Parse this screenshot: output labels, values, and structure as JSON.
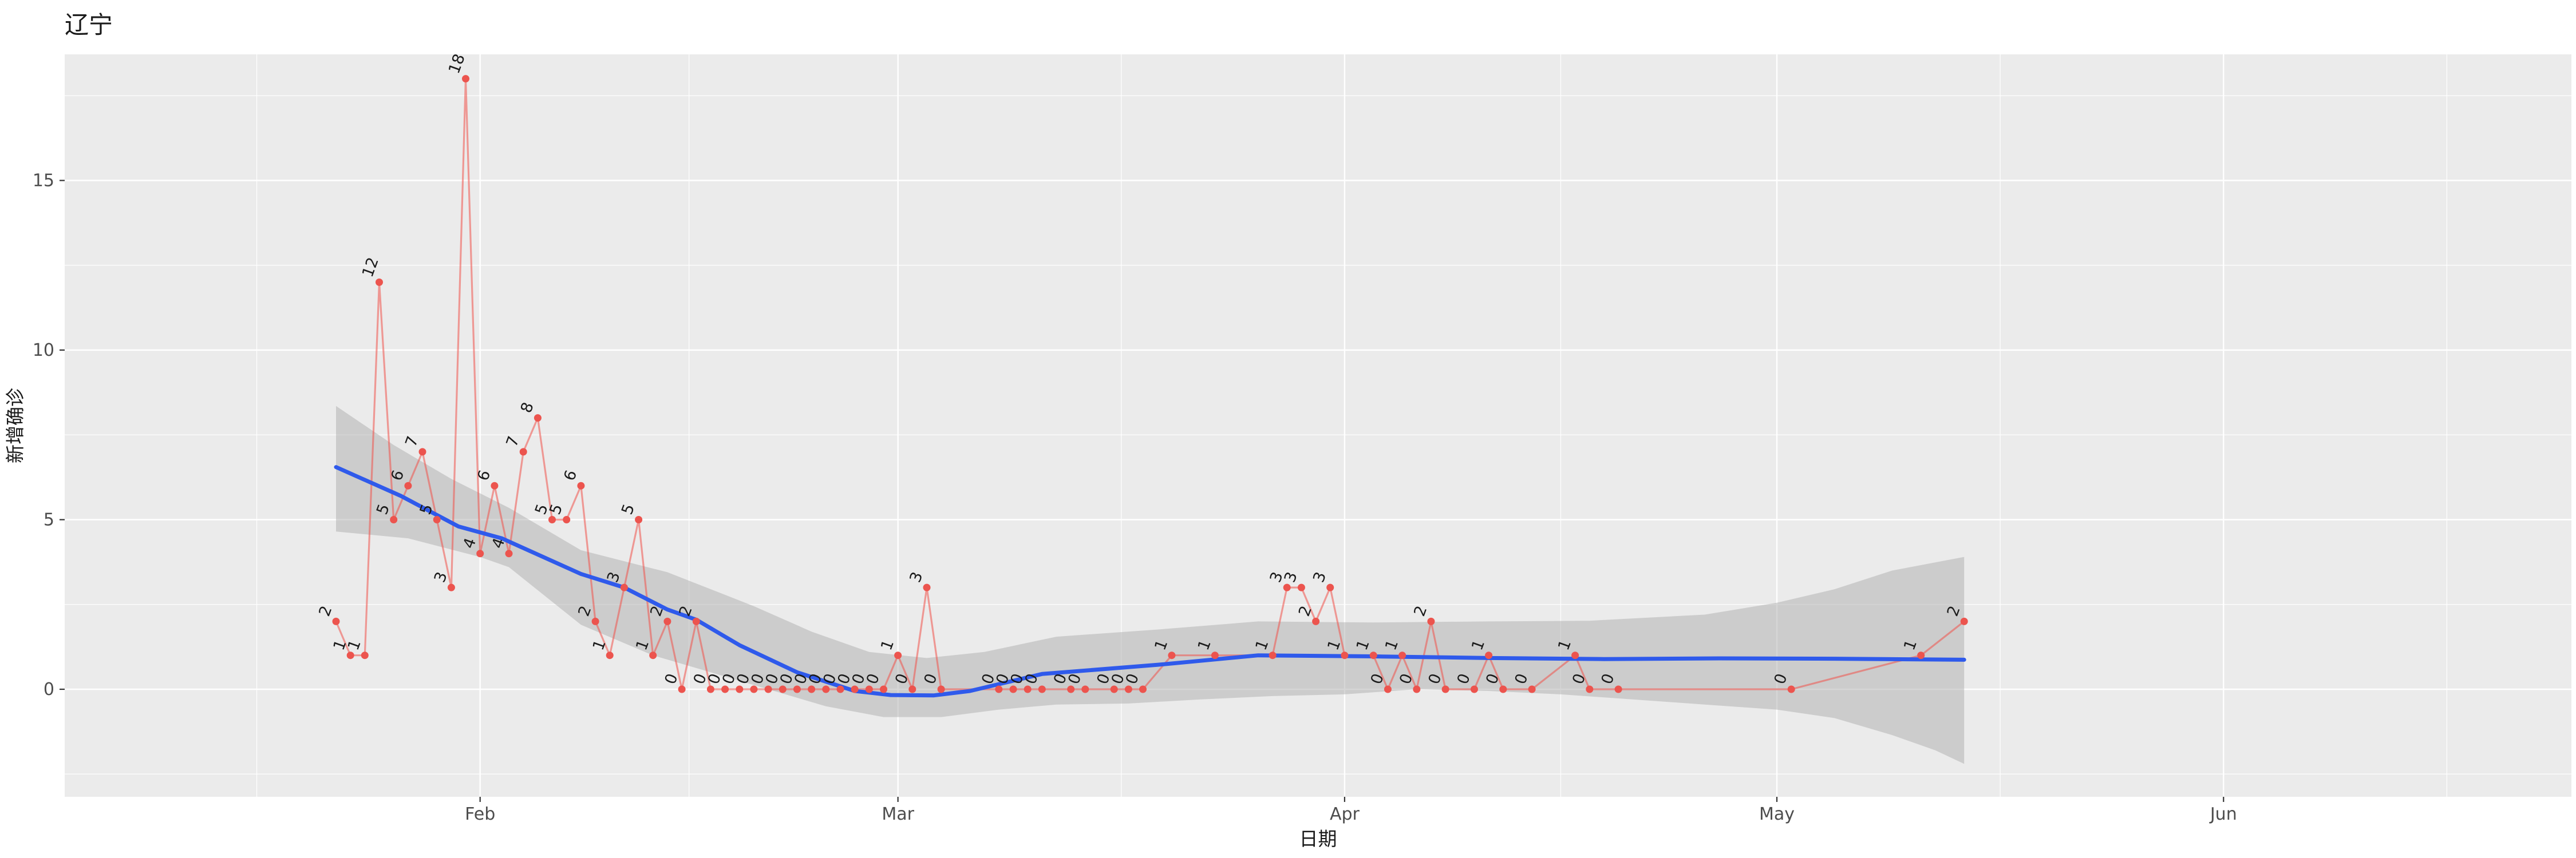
{
  "chart_data": {
    "type": "line",
    "title": "辽宁",
    "xlabel": "日期",
    "ylabel": "新增确诊",
    "x_unit": "days since 2020-01-22",
    "x_start_date": "2020-01-22",
    "x_axis": {
      "major_ticks": [
        {
          "label": "Feb",
          "day": 10
        },
        {
          "label": "Mar",
          "day": 39
        },
        {
          "label": "Apr",
          "day": 70
        },
        {
          "label": "May",
          "day": 100
        },
        {
          "label": "Jun",
          "day": 131
        }
      ],
      "minor_days": [
        -5.5,
        24.5,
        54.5,
        85,
        115.5,
        146.5
      ]
    },
    "y_axis": {
      "major_ticks": [
        0,
        5,
        10,
        15
      ],
      "minor_ticks": [
        -2.5,
        2.5,
        7.5,
        12.5,
        17.5
      ]
    },
    "ylim": [
      -3.17,
      18.72
    ],
    "grid": true,
    "legend": false,
    "series": [
      {
        "name": "新增确诊",
        "points": [
          [
            0,
            2
          ],
          [
            1,
            1
          ],
          [
            2,
            1
          ],
          [
            3,
            12
          ],
          [
            4,
            5
          ],
          [
            5,
            6
          ],
          [
            6,
            7
          ],
          [
            7,
            5
          ],
          [
            8,
            3
          ],
          [
            9,
            18
          ],
          [
            10,
            4
          ],
          [
            11,
            6
          ],
          [
            12,
            4
          ],
          [
            13,
            7
          ],
          [
            14,
            8
          ],
          [
            15,
            5
          ],
          [
            16,
            5
          ],
          [
            17,
            6
          ],
          [
            18,
            2
          ],
          [
            19,
            1
          ],
          [
            20,
            3
          ],
          [
            21,
            5
          ],
          [
            22,
            1
          ],
          [
            23,
            2
          ],
          [
            24,
            0
          ],
          [
            25,
            2
          ],
          [
            26,
            0
          ],
          [
            27,
            0
          ],
          [
            28,
            0
          ],
          [
            29,
            0
          ],
          [
            30,
            0
          ],
          [
            31,
            0
          ],
          [
            32,
            0
          ],
          [
            33,
            0
          ],
          [
            34,
            0
          ],
          [
            35,
            0
          ],
          [
            36,
            0
          ],
          [
            37,
            0
          ],
          [
            38,
            0
          ],
          [
            39,
            1
          ],
          [
            40,
            0
          ],
          [
            41,
            3
          ],
          [
            42,
            0
          ],
          [
            46,
            0
          ],
          [
            47,
            0
          ],
          [
            48,
            0
          ],
          [
            49,
            0
          ],
          [
            51,
            0
          ],
          [
            52,
            0
          ],
          [
            54,
            0
          ],
          [
            55,
            0
          ],
          [
            56,
            0
          ],
          [
            58,
            1
          ],
          [
            61,
            1
          ],
          [
            65,
            1
          ],
          [
            66,
            3
          ],
          [
            67,
            3
          ],
          [
            68,
            2
          ],
          [
            69,
            3
          ],
          [
            70,
            1
          ],
          [
            72,
            1
          ],
          [
            73,
            0
          ],
          [
            74,
            1
          ],
          [
            75,
            0
          ],
          [
            76,
            2
          ],
          [
            77,
            0
          ],
          [
            79,
            0
          ],
          [
            80,
            1
          ],
          [
            81,
            0
          ],
          [
            83,
            0
          ],
          [
            86,
            1
          ],
          [
            87,
            0
          ],
          [
            89,
            0
          ],
          [
            101,
            0
          ],
          [
            110,
            1
          ],
          [
            113,
            2
          ]
        ]
      }
    ],
    "smooth_line": [
      [
        0,
        6.55
      ],
      [
        4.5,
        5.7
      ],
      [
        8.5,
        4.8
      ],
      [
        11.5,
        4.45
      ],
      [
        17,
        3.4
      ],
      [
        20,
        3.0
      ],
      [
        23,
        2.35
      ],
      [
        25,
        2.05
      ],
      [
        28,
        1.3
      ],
      [
        32,
        0.5
      ],
      [
        36,
        -0.05
      ],
      [
        38.5,
        -0.17
      ],
      [
        41.5,
        -0.18
      ],
      [
        44,
        -0.05
      ],
      [
        49,
        0.45
      ],
      [
        57,
        0.72
      ],
      [
        64,
        1.0
      ],
      [
        72,
        0.97
      ],
      [
        80,
        0.92
      ],
      [
        88,
        0.89
      ],
      [
        96,
        0.91
      ],
      [
        104,
        0.9
      ],
      [
        113,
        0.87
      ]
    ],
    "confidence_band": {
      "upper": [
        [
          0,
          8.35
        ],
        [
          4,
          7.2
        ],
        [
          8,
          6.2
        ],
        [
          12,
          5.35
        ],
        [
          17,
          4.1
        ],
        [
          23,
          3.45
        ],
        [
          29,
          2.45
        ],
        [
          33,
          1.7
        ],
        [
          37,
          1.1
        ],
        [
          41,
          0.92
        ],
        [
          45,
          1.1
        ],
        [
          50,
          1.55
        ],
        [
          57,
          1.76
        ],
        [
          64,
          2.0
        ],
        [
          72,
          1.97
        ],
        [
          80,
          2.0
        ],
        [
          87,
          2.02
        ],
        [
          95,
          2.2
        ],
        [
          100,
          2.55
        ],
        [
          104,
          2.95
        ],
        [
          108,
          3.5
        ],
        [
          113,
          3.9
        ]
      ],
      "lower": [
        [
          0,
          4.65
        ],
        [
          5,
          4.45
        ],
        [
          10,
          3.9
        ],
        [
          12,
          3.6
        ],
        [
          17,
          1.9
        ],
        [
          22,
          1.0
        ],
        [
          26,
          0.5
        ],
        [
          30,
          0.0
        ],
        [
          34,
          -0.5
        ],
        [
          38,
          -0.82
        ],
        [
          42,
          -0.82
        ],
        [
          46,
          -0.6
        ],
        [
          50,
          -0.45
        ],
        [
          55,
          -0.42
        ],
        [
          60,
          -0.3
        ],
        [
          65,
          -0.2
        ],
        [
          70,
          -0.15
        ],
        [
          75,
          0.0
        ],
        [
          80,
          -0.05
        ],
        [
          85,
          -0.15
        ],
        [
          90,
          -0.3
        ],
        [
          95,
          -0.45
        ],
        [
          100,
          -0.6
        ],
        [
          104,
          -0.85
        ],
        [
          108,
          -1.35
        ],
        [
          111,
          -1.8
        ],
        [
          113,
          -2.2
        ]
      ]
    },
    "colors": {
      "panel": "#EBEBEB",
      "grid": "#FFFFFF",
      "line": "#F0524A",
      "point": "#EC544E",
      "point_label": "#1A1A1A",
      "smooth": "#2F5AEB",
      "band": "#ADADAD",
      "axis_text": "#4D4D4D",
      "axis_title": "#1A1A1A"
    }
  }
}
